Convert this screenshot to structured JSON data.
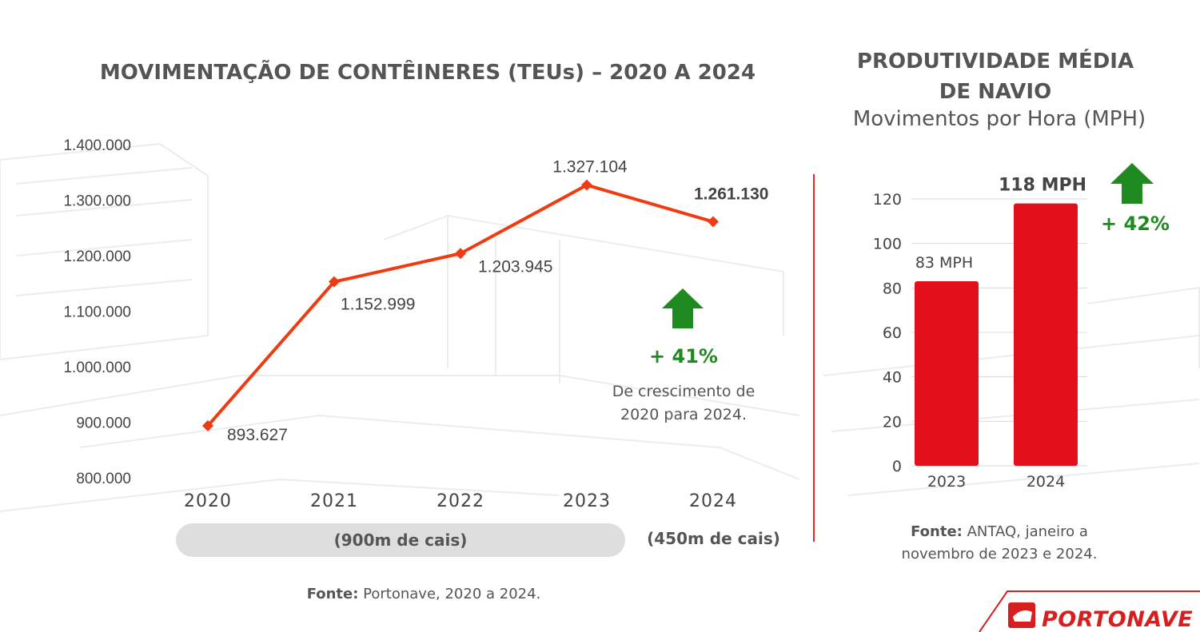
{
  "left_panel": {
    "title": "MOVIMENTAÇÃO DE CONTÊINERES (TEUs) – 2020 A 2024",
    "growth_label": "+ 41%",
    "growth_note_line1": "De crescimento de",
    "growth_note_line2": "2020 para 2024.",
    "quay_900": "(900m de cais)",
    "quay_450": "(450m de cais)",
    "source_label": "Fonte:",
    "source_text": " Portonave, 2020 a 2024."
  },
  "right_panel": {
    "title_line1": "PRODUTIVIDADE MÉDIA",
    "title_line2": "DE NAVIO",
    "subtitle": "Movimentos por Hora (MPH)",
    "growth_label": "+ 42%",
    "source_label": "Fonte:",
    "source_text_line1": " ANTAQ, janeiro a",
    "source_text_line2": "novembro de 2023 e 2024."
  },
  "brand": {
    "name": "PORTONAVE",
    "color": "#d81e1e"
  },
  "colors": {
    "line": "#f03a12",
    "bar": "#e3101c",
    "growth": "#1f8a1f",
    "divider": "#e02b2b"
  },
  "chart_data": [
    {
      "type": "line",
      "title": "MOVIMENTAÇÃO DE CONTÊINERES (TEUs) – 2020 A 2024",
      "x": [
        "2020",
        "2021",
        "2022",
        "2023",
        "2024"
      ],
      "series": [
        {
          "values": [
            893627,
            1152999,
            1203945,
            1327104,
            1261130
          ],
          "labels": [
            "893.627",
            "1.152.999",
            "1.203.945",
            "1.327.104",
            "1.261.130"
          ]
        }
      ],
      "yticks": [
        "800.000",
        "900.000",
        "1.000.000",
        "1.100.000",
        "1.200.000",
        "1.300.000",
        "1.400.000"
      ],
      "ylim": [
        800000,
        1400000
      ],
      "grid": false,
      "legend": "none"
    },
    {
      "type": "bar",
      "title": "PRODUTIVIDADE MÉDIA DE NAVIO",
      "categories": [
        "2023",
        "2024"
      ],
      "values": [
        83,
        118
      ],
      "labels": [
        "83 MPH",
        "118 MPH"
      ],
      "yticks": [
        "0",
        "20",
        "40",
        "60",
        "80",
        "100",
        "120"
      ],
      "ylim": [
        0,
        120
      ],
      "grid": true,
      "legend": "none"
    }
  ]
}
